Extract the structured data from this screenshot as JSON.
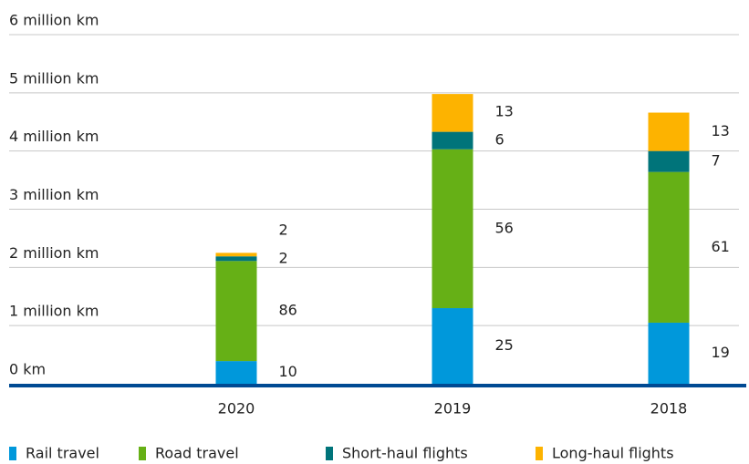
{
  "chart_data": {
    "type": "stacked_bar",
    "categories": [
      "2020",
      "2019",
      "2018"
    ],
    "ylim": [
      0,
      6
    ],
    "yticks": [
      {
        "value": 0,
        "label": "0 km"
      },
      {
        "value": 1,
        "label": "1 million km"
      },
      {
        "value": 2,
        "label": "2 million km"
      },
      {
        "value": 3,
        "label": "3 million km"
      },
      {
        "value": 4,
        "label": "4 million km"
      },
      {
        "value": 5,
        "label": "5 million km"
      },
      {
        "value": 6,
        "label": "6 million km"
      }
    ],
    "grid": true,
    "legend": "bottom",
    "series": [
      {
        "name": "Rail travel",
        "color": "#0098db",
        "values": [
          0.39,
          1.3,
          1.05
        ],
        "shares": [
          10,
          25,
          19
        ]
      },
      {
        "name": "Road travel",
        "color": "#66b016",
        "values": [
          1.72,
          2.73,
          2.59
        ],
        "shares": [
          86,
          56,
          61
        ]
      },
      {
        "name": "Short-haul flights",
        "color": "#00747a",
        "values": [
          0.08,
          0.3,
          0.36
        ],
        "shares": [
          2,
          6,
          7
        ]
      },
      {
        "name": "Long-haul flights",
        "color": "#fdb300",
        "values": [
          0.06,
          0.65,
          0.66
        ],
        "shares": [
          2,
          13,
          13
        ]
      }
    ]
  }
}
